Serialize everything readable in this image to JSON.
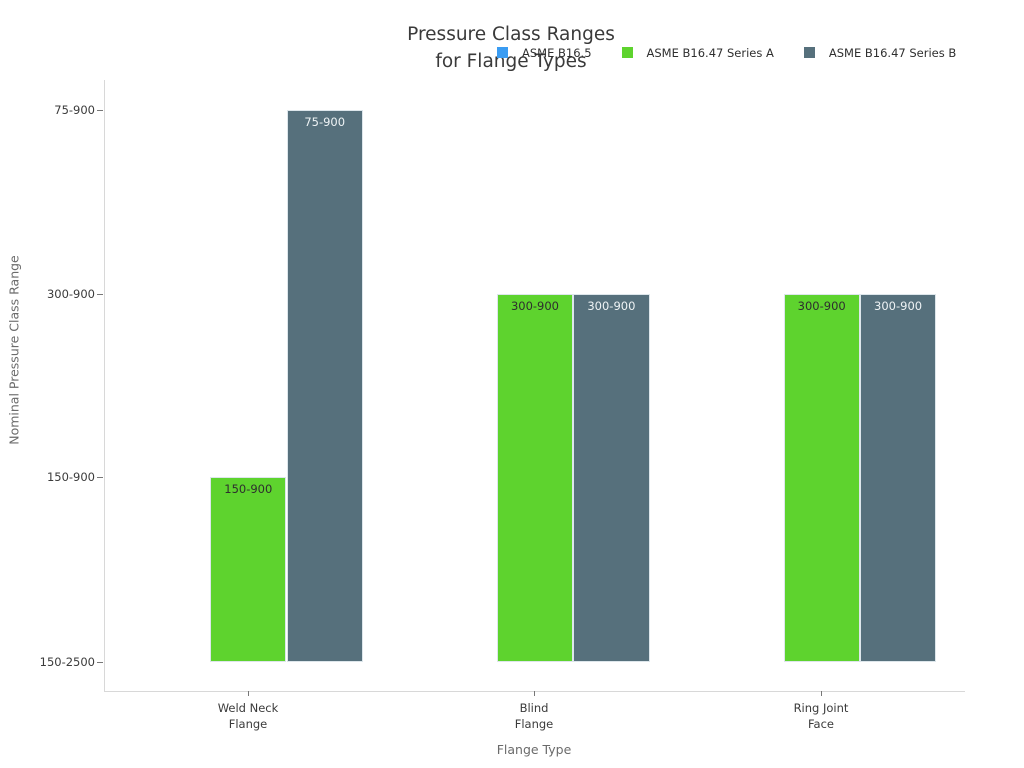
{
  "title": {
    "line1": "Pressure Class Ranges",
    "line2": "for Flange Types"
  },
  "legend": [
    {
      "label": "ASME B16.5",
      "color": "#3A9CF2",
      "icon": "legend-swatch-square"
    },
    {
      "label": "ASME B16.47 Series A",
      "color": "#5ED32E",
      "icon": "legend-swatch-square"
    },
    {
      "label": "ASME B16.47 Series B",
      "color": "#56707C",
      "icon": "legend-swatch-square"
    }
  ],
  "axes": {
    "x_title": "Flange Type",
    "y_title": "Nominal Pressure Class Range",
    "y_ticks_bottom_to_top": [
      "150-2500",
      "150-900",
      "300-900",
      "75-900"
    ],
    "x_ticks": [
      {
        "line1": "Weld Neck",
        "line2": "Flange"
      },
      {
        "line1": "Blind",
        "line2": "Flange"
      },
      {
        "line1": "Ring Joint",
        "line2": "Face"
      }
    ]
  },
  "chart_data": {
    "type": "bar",
    "title": "Pressure Class Ranges for Flange Types",
    "xlabel": "Flange Type",
    "ylabel": "Nominal Pressure Class Range",
    "categories": [
      "Weld Neck Flange",
      "Blind Flange",
      "Ring Joint Face"
    ],
    "y_axis_category_levels": [
      "150-2500",
      "150-900",
      "300-900",
      "75-900"
    ],
    "series": [
      {
        "name": "ASME B16.5",
        "color": "#3A9CF2",
        "values": [
          null,
          null,
          null
        ]
      },
      {
        "name": "ASME B16.47 Series A",
        "color": "#5ED32E",
        "values": [
          "150-900",
          "300-900",
          "300-900"
        ]
      },
      {
        "name": "ASME B16.47 Series B",
        "color": "#56707C",
        "values": [
          "75-900",
          "300-900",
          "300-900"
        ]
      }
    ],
    "bar_labels_visible": true,
    "legend_position": "top-center",
    "grid": false,
    "baseline_level": "150-2500"
  }
}
